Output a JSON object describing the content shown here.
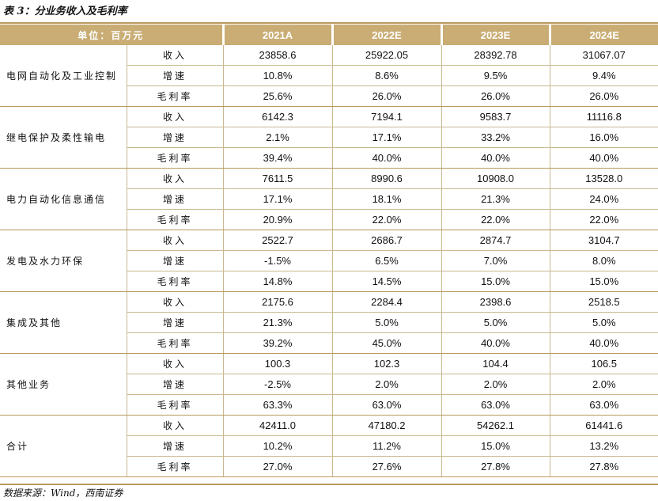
{
  "title": "表 3：分业务收入及毛利率",
  "header": {
    "unit_label": "单位：百万元",
    "years": [
      "2021A",
      "2022E",
      "2023E",
      "2024E"
    ]
  },
  "segments": [
    {
      "name": "电网自动化及工业控制",
      "rows": [
        {
          "metric": "收入",
          "values": [
            "23858.6",
            "25922.05",
            "28392.78",
            "31067.07"
          ]
        },
        {
          "metric": "增速",
          "values": [
            "10.8%",
            "8.6%",
            "9.5%",
            "9.4%"
          ]
        },
        {
          "metric": "毛利率",
          "values": [
            "25.6%",
            "26.0%",
            "26.0%",
            "26.0%"
          ]
        }
      ]
    },
    {
      "name": "继电保护及柔性输电",
      "rows": [
        {
          "metric": "收入",
          "values": [
            "6142.3",
            "7194.1",
            "9583.7",
            "11116.8"
          ]
        },
        {
          "metric": "增速",
          "values": [
            "2.1%",
            "17.1%",
            "33.2%",
            "16.0%"
          ]
        },
        {
          "metric": "毛利率",
          "values": [
            "39.4%",
            "40.0%",
            "40.0%",
            "40.0%"
          ]
        }
      ]
    },
    {
      "name": "电力自动化信息通信",
      "rows": [
        {
          "metric": "收入",
          "values": [
            "7611.5",
            "8990.6",
            "10908.0",
            "13528.0"
          ]
        },
        {
          "metric": "增速",
          "values": [
            "17.1%",
            "18.1%",
            "21.3%",
            "24.0%"
          ]
        },
        {
          "metric": "毛利率",
          "values": [
            "20.9%",
            "22.0%",
            "22.0%",
            "22.0%"
          ]
        }
      ]
    },
    {
      "name": "发电及水力环保",
      "rows": [
        {
          "metric": "收入",
          "values": [
            "2522.7",
            "2686.7",
            "2874.7",
            "3104.7"
          ]
        },
        {
          "metric": "增速",
          "values": [
            "-1.5%",
            "6.5%",
            "7.0%",
            "8.0%"
          ]
        },
        {
          "metric": "毛利率",
          "values": [
            "14.8%",
            "14.5%",
            "15.0%",
            "15.0%"
          ]
        }
      ]
    },
    {
      "name": "集成及其他",
      "rows": [
        {
          "metric": "收入",
          "values": [
            "2175.6",
            "2284.4",
            "2398.6",
            "2518.5"
          ]
        },
        {
          "metric": "增速",
          "values": [
            "21.3%",
            "5.0%",
            "5.0%",
            "5.0%"
          ]
        },
        {
          "metric": "毛利率",
          "values": [
            "39.2%",
            "45.0%",
            "40.0%",
            "40.0%"
          ]
        }
      ]
    },
    {
      "name": "其他业务",
      "rows": [
        {
          "metric": "收入",
          "values": [
            "100.3",
            "102.3",
            "104.4",
            "106.5"
          ]
        },
        {
          "metric": "增速",
          "values": [
            "-2.5%",
            "2.0%",
            "2.0%",
            "2.0%"
          ]
        },
        {
          "metric": "毛利率",
          "values": [
            "63.3%",
            "63.0%",
            "63.0%",
            "63.0%"
          ]
        }
      ]
    },
    {
      "name": "合计",
      "rows": [
        {
          "metric": "收入",
          "values": [
            "42411.0",
            "47180.2",
            "54262.1",
            "61441.6"
          ]
        },
        {
          "metric": "增速",
          "values": [
            "10.2%",
            "11.2%",
            "15.0%",
            "13.2%"
          ]
        },
        {
          "metric": "毛利率",
          "values": [
            "27.0%",
            "27.6%",
            "27.8%",
            "27.8%"
          ]
        }
      ]
    }
  ],
  "source": "数据来源：Wind，西南证券",
  "colors": {
    "header_bg": "#c9ad74",
    "rule": "#b8995c",
    "grid": "#c9b890"
  }
}
